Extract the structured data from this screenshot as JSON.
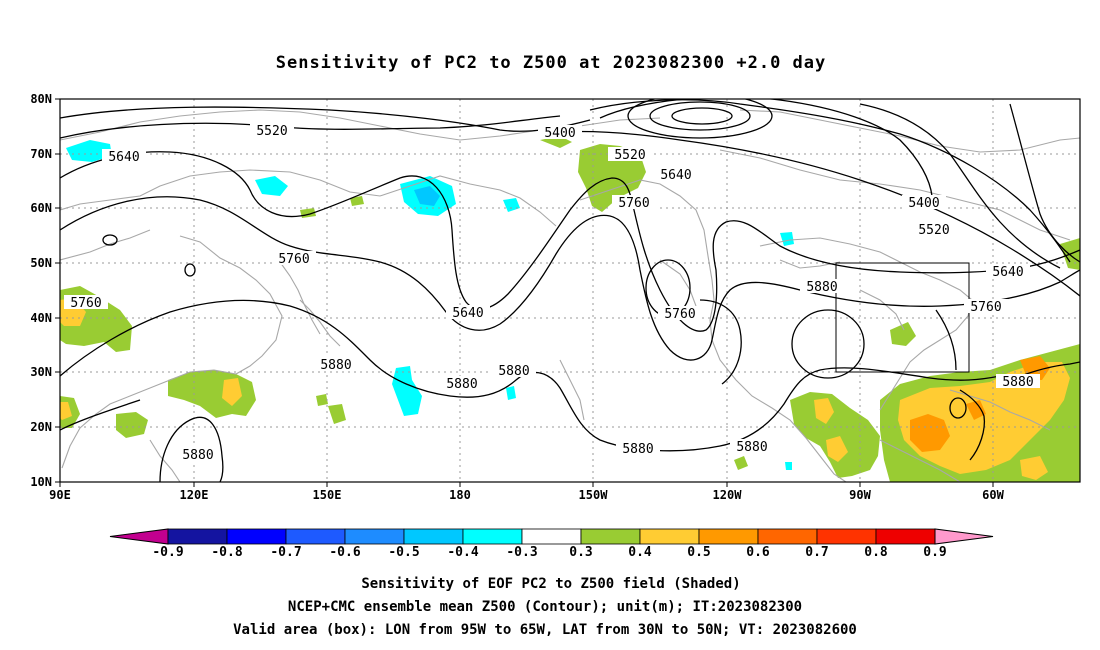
{
  "title": "Sensitivity of PC2 to Z500 at 2023082300 +2.0 day",
  "lat_labels": [
    "80N",
    "70N",
    "60N",
    "50N",
    "40N",
    "30N",
    "20N",
    "10N"
  ],
  "lon_labels": [
    "90E",
    "120E",
    "150E",
    "180",
    "150W",
    "120W",
    "90W",
    "60W"
  ],
  "contour_labels": {
    "c5400": "5400",
    "c5520": "5520",
    "c5640": "5640",
    "c5760": "5760",
    "c5880": "5880"
  },
  "colorbar": {
    "labels": [
      "-0.9",
      "-0.8",
      "-0.7",
      "-0.6",
      "-0.5",
      "-0.4",
      "-0.3",
      "0.3",
      "0.4",
      "0.5",
      "0.6",
      "0.7",
      "0.8",
      "0.9"
    ],
    "colors": [
      "#c2008f",
      "#1414a0",
      "#0000ff",
      "#1e5aff",
      "#1e8cff",
      "#00c8ff",
      "#00ffff",
      "#ffffff",
      "#99cc33",
      "#ffcc33",
      "#ff9900",
      "#ff6600",
      "#ff3300",
      "#ee0000",
      "#ff99cc"
    ]
  },
  "shading_colors": {
    "green": "#99cc33",
    "yellow": "#ffcc33",
    "orange": "#ff9900",
    "cyan": "#00ffff",
    "lightblue": "#00c8ff"
  },
  "caption": {
    "line1": "Sensitivity of EOF PC2 to Z500 field (Shaded)",
    "line2": "NCEP+CMC ensemble mean Z500 (Contour); unit(m); IT:2023082300",
    "line3": "Valid area (box): LON from 95W to 65W, LAT from 30N to 50N; VT: 2023082600"
  }
}
